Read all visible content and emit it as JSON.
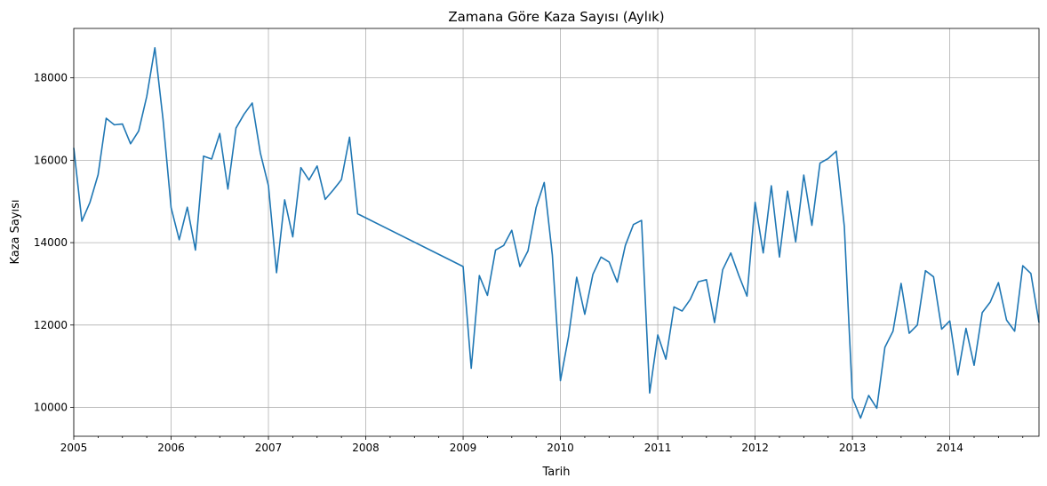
{
  "chart_data": {
    "type": "line",
    "title": "Zamana Göre Kaza Sayısı (Aylık)",
    "xlabel": "Tarih",
    "ylabel": "Kaza Sayısı",
    "xlim": [
      "2005-01",
      "2014-12"
    ],
    "ylim": [
      9300,
      19200
    ],
    "grid": true,
    "line_color": "#1f77b4",
    "x_ticks": [
      "2005",
      "2006",
      "2007",
      "2008",
      "2009",
      "2010",
      "2011",
      "2012",
      "2013",
      "2014"
    ],
    "y_ticks": [
      10000,
      12000,
      14000,
      16000,
      18000
    ],
    "series": [
      {
        "points": [
          [
            "2005-01",
            16300
          ],
          [
            "2005-02",
            14520
          ],
          [
            "2005-03",
            14980
          ],
          [
            "2005-04",
            15650
          ],
          [
            "2005-05",
            17020
          ],
          [
            "2005-06",
            16860
          ],
          [
            "2005-07",
            16880
          ],
          [
            "2005-08",
            16400
          ],
          [
            "2005-09",
            16710
          ],
          [
            "2005-10",
            17550
          ],
          [
            "2005-11",
            18730
          ],
          [
            "2005-12",
            17000
          ],
          [
            "2006-01",
            14850
          ],
          [
            "2006-02",
            14070
          ],
          [
            "2006-03",
            14860
          ],
          [
            "2006-04",
            13820
          ],
          [
            "2006-05",
            16100
          ],
          [
            "2006-06",
            16030
          ],
          [
            "2006-07",
            16650
          ],
          [
            "2006-08",
            15300
          ],
          [
            "2006-09",
            16780
          ],
          [
            "2006-10",
            17120
          ],
          [
            "2006-11",
            17390
          ],
          [
            "2006-12",
            16180
          ],
          [
            "2007-01",
            15380
          ],
          [
            "2007-02",
            13270
          ],
          [
            "2007-03",
            15040
          ],
          [
            "2007-04",
            14140
          ],
          [
            "2007-05",
            15820
          ],
          [
            "2007-06",
            15520
          ],
          [
            "2007-07",
            15860
          ],
          [
            "2007-08",
            15050
          ],
          [
            "2007-09",
            15280
          ],
          [
            "2007-10",
            15530
          ],
          [
            "2007-11",
            16560
          ],
          [
            "2007-12",
            14700
          ],
          [
            "2009-01",
            13420
          ],
          [
            "2009-02",
            10950
          ],
          [
            "2009-03",
            13200
          ],
          [
            "2009-04",
            12720
          ],
          [
            "2009-05",
            13820
          ],
          [
            "2009-06",
            13930
          ],
          [
            "2009-07",
            14300
          ],
          [
            "2009-08",
            13420
          ],
          [
            "2009-09",
            13800
          ],
          [
            "2009-10",
            14850
          ],
          [
            "2009-11",
            15460
          ],
          [
            "2009-12",
            13700
          ],
          [
            "2010-01",
            10650
          ],
          [
            "2010-02",
            11720
          ],
          [
            "2010-03",
            13160
          ],
          [
            "2010-04",
            12260
          ],
          [
            "2010-05",
            13230
          ],
          [
            "2010-06",
            13650
          ],
          [
            "2010-07",
            13530
          ],
          [
            "2010-08",
            13040
          ],
          [
            "2010-09",
            13930
          ],
          [
            "2010-10",
            14440
          ],
          [
            "2010-11",
            14540
          ],
          [
            "2010-12",
            10350
          ],
          [
            "2011-01",
            11760
          ],
          [
            "2011-02",
            11170
          ],
          [
            "2011-03",
            12440
          ],
          [
            "2011-04",
            12340
          ],
          [
            "2011-05",
            12620
          ],
          [
            "2011-06",
            13050
          ],
          [
            "2011-07",
            13100
          ],
          [
            "2011-08",
            12060
          ],
          [
            "2011-09",
            13340
          ],
          [
            "2011-10",
            13750
          ],
          [
            "2011-11",
            13200
          ],
          [
            "2011-12",
            12700
          ],
          [
            "2012-01",
            14980
          ],
          [
            "2012-02",
            13750
          ],
          [
            "2012-03",
            15380
          ],
          [
            "2012-04",
            13650
          ],
          [
            "2012-05",
            15250
          ],
          [
            "2012-06",
            14020
          ],
          [
            "2012-07",
            15640
          ],
          [
            "2012-08",
            14420
          ],
          [
            "2012-09",
            15930
          ],
          [
            "2012-10",
            16040
          ],
          [
            "2012-11",
            16220
          ],
          [
            "2012-12",
            14390
          ],
          [
            "2013-01",
            10230
          ],
          [
            "2013-02",
            9740
          ],
          [
            "2013-03",
            10290
          ],
          [
            "2013-04",
            9980
          ],
          [
            "2013-05",
            11460
          ],
          [
            "2013-06",
            11850
          ],
          [
            "2013-07",
            13010
          ],
          [
            "2013-08",
            11800
          ],
          [
            "2013-09",
            12000
          ],
          [
            "2013-10",
            13320
          ],
          [
            "2013-11",
            13170
          ],
          [
            "2013-12",
            11900
          ],
          [
            "2014-01",
            12100
          ],
          [
            "2014-02",
            10790
          ],
          [
            "2014-03",
            11920
          ],
          [
            "2014-04",
            11020
          ],
          [
            "2014-05",
            12300
          ],
          [
            "2014-06",
            12560
          ],
          [
            "2014-07",
            13030
          ],
          [
            "2014-08",
            12120
          ],
          [
            "2014-09",
            11850
          ],
          [
            "2014-10",
            13440
          ],
          [
            "2014-11",
            13250
          ],
          [
            "2014-12",
            12060
          ]
        ]
      }
    ]
  }
}
